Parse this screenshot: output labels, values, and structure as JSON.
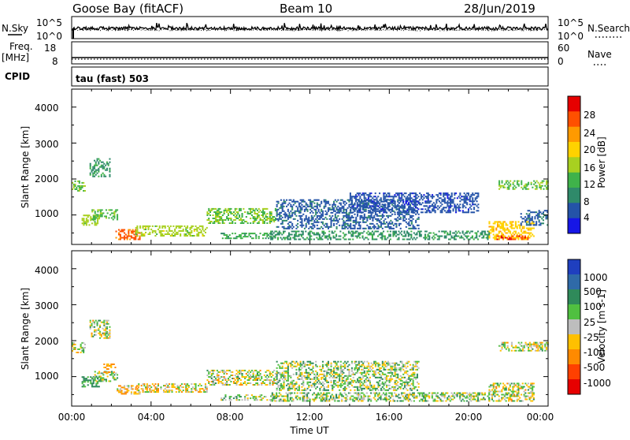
{
  "header": {
    "title": "Goose Bay (fitACF)",
    "beam": "Beam 10",
    "date": "28/Jun/2019"
  },
  "nsky_panel": {
    "left_label": "N.Sky",
    "right_label": "N.Search",
    "left_ticks": [
      "10^5",
      "10^0"
    ],
    "right_ticks": [
      "10^5",
      "10^0"
    ]
  },
  "freq_panel": {
    "left_label_1": "Freq.",
    "left_label_2": "[MHz]",
    "right_label": "Nave",
    "left_ticks": [
      "18",
      "8"
    ],
    "right_ticks": [
      "60",
      "0"
    ]
  },
  "cpid": {
    "label": "CPID",
    "value": "tau (fast) 503"
  },
  "time_axis": {
    "label": "Time UT",
    "ticks": [
      "00:00",
      "04:00",
      "08:00",
      "12:00",
      "16:00",
      "20:00",
      "00:00"
    ]
  },
  "power_panel": {
    "ylabel": "Slant Range [km]",
    "yticks": [
      "1000",
      "2000",
      "3000",
      "4000"
    ],
    "colorbar_label": "Power [dB]",
    "colorbar_ticks": [
      "4",
      "8",
      "12",
      "16",
      "20",
      "24",
      "28"
    ],
    "colors": [
      "#1616e6",
      "#2453a8",
      "#2f8a6a",
      "#3fb24a",
      "#a8d020",
      "#ffd200",
      "#ff9a00",
      "#ff5000",
      "#e60000"
    ]
  },
  "velocity_panel": {
    "ylabel": "Slant Range [km]",
    "yticks": [
      "1000",
      "2000",
      "3000",
      "4000"
    ],
    "colorbar_label": "Velocity [m s-1]",
    "colorbar_ticks": [
      "1000",
      "500",
      "100",
      "25",
      "-25",
      "-100",
      "-500",
      "-1000"
    ],
    "colors": [
      "#1f3fbf",
      "#2f6aa8",
      "#2f8a5a",
      "#50c040",
      "#bdbdbd",
      "#ffc000",
      "#ff8a00",
      "#ff4000",
      "#e60000"
    ]
  },
  "chart_data": [
    {
      "type": "heatmap",
      "name": "Power",
      "x_range_hours": [
        0,
        24
      ],
      "y_range_km": [
        180,
        4500
      ],
      "z_range": [
        0,
        32
      ],
      "regions": [
        {
          "t": [
            0.0,
            0.7
          ],
          "r": [
            1650,
            1950
          ],
          "z": 14
        },
        {
          "t": [
            0.9,
            1.9
          ],
          "r": [
            2050,
            2550
          ],
          "z": 10
        },
        {
          "t": [
            0.5,
            1.4
          ],
          "r": [
            700,
            1000
          ],
          "z": 16
        },
        {
          "t": [
            1.0,
            2.3
          ],
          "r": [
            850,
            1150
          ],
          "z": 13
        },
        {
          "t": [
            2.2,
            3.4
          ],
          "r": [
            300,
            600
          ],
          "z": 26
        },
        {
          "t": [
            3.2,
            6.8
          ],
          "r": [
            400,
            700
          ],
          "z": 16
        },
        {
          "t": [
            6.8,
            10.3
          ],
          "r": [
            750,
            1150
          ],
          "z": 14
        },
        {
          "t": [
            7.5,
            10.3
          ],
          "r": [
            330,
            500
          ],
          "z": 12
        },
        {
          "t": [
            10.3,
            17.5
          ],
          "r": [
            600,
            1400
          ],
          "z": 6
        },
        {
          "t": [
            14.0,
            20.5
          ],
          "r": [
            1050,
            1600
          ],
          "z": 5
        },
        {
          "t": [
            10.0,
            21.0
          ],
          "r": [
            300,
            550
          ],
          "z": 10
        },
        {
          "t": [
            21.0,
            23.3
          ],
          "r": [
            300,
            800
          ],
          "z": 20
        },
        {
          "t": [
            21.4,
            23.0
          ],
          "r": [
            300,
            420
          ],
          "z": 28
        },
        {
          "t": [
            22.6,
            24.0
          ],
          "r": [
            700,
            1100
          ],
          "z": 6
        },
        {
          "t": [
            21.5,
            24.0
          ],
          "r": [
            1700,
            1950
          ],
          "z": 14
        }
      ]
    },
    {
      "type": "heatmap",
      "name": "Velocity",
      "x_range_hours": [
        0,
        24
      ],
      "y_range_km": [
        180,
        4500
      ],
      "z_range": [
        -1000,
        1000
      ],
      "regions": [
        {
          "t": [
            0.0,
            0.7
          ],
          "r": [
            1650,
            1950
          ],
          "z": 0
        },
        {
          "t": [
            0.9,
            1.9
          ],
          "r": [
            2050,
            2550
          ],
          "z": 0
        },
        {
          "t": [
            0.5,
            1.4
          ],
          "r": [
            700,
            1000
          ],
          "z": 150
        },
        {
          "t": [
            1.0,
            2.3
          ],
          "r": [
            850,
            1150
          ],
          "z": 60
        },
        {
          "t": [
            1.6,
            2.2
          ],
          "r": [
            1100,
            1350
          ],
          "z": -150
        },
        {
          "t": [
            2.2,
            3.4
          ],
          "r": [
            500,
            750
          ],
          "z": -80
        },
        {
          "t": [
            3.2,
            6.8
          ],
          "r": [
            550,
            800
          ],
          "z": -40
        },
        {
          "t": [
            6.8,
            10.3
          ],
          "r": [
            750,
            1150
          ],
          "z": 0
        },
        {
          "t": [
            7.5,
            10.3
          ],
          "r": [
            330,
            500
          ],
          "z": 60
        },
        {
          "t": [
            10.3,
            17.5
          ],
          "r": [
            600,
            1400
          ],
          "z": 40
        },
        {
          "t": [
            10.0,
            21.0
          ],
          "r": [
            300,
            550
          ],
          "z": 40
        },
        {
          "t": [
            21.0,
            23.3
          ],
          "r": [
            300,
            800
          ],
          "z": 0
        },
        {
          "t": [
            21.5,
            24.0
          ],
          "r": [
            1700,
            1950
          ],
          "z": 0
        }
      ]
    }
  ]
}
